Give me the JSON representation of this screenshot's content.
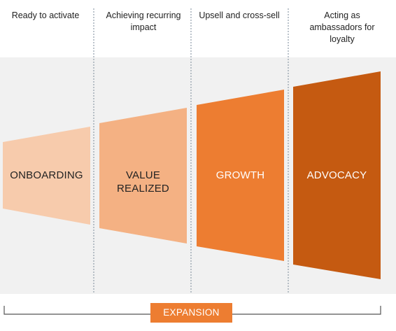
{
  "colors": {
    "band_bg": "#f1f1f1",
    "divider": "#7a8a99",
    "bracket": "#555555",
    "badge": "#ed7d31"
  },
  "stages": [
    {
      "header": "Ready to activate",
      "label": "ONBOARDING",
      "color": "#f7cbac",
      "text_color": "#222222"
    },
    {
      "header": "Achieving recurring impact",
      "label": "VALUE\nREALIZED",
      "color": "#f4b183",
      "text_color": "#222222"
    },
    {
      "header": "Upsell and cross-sell",
      "label": "GROWTH",
      "color": "#ed7d31",
      "text_color": "#ffffff"
    },
    {
      "header": "Acting as ambassadors for loyalty",
      "label": "ADVOCACY",
      "color": "#c55a11",
      "text_color": "#ffffff"
    }
  ],
  "footer": {
    "label": "EXPANSION"
  }
}
